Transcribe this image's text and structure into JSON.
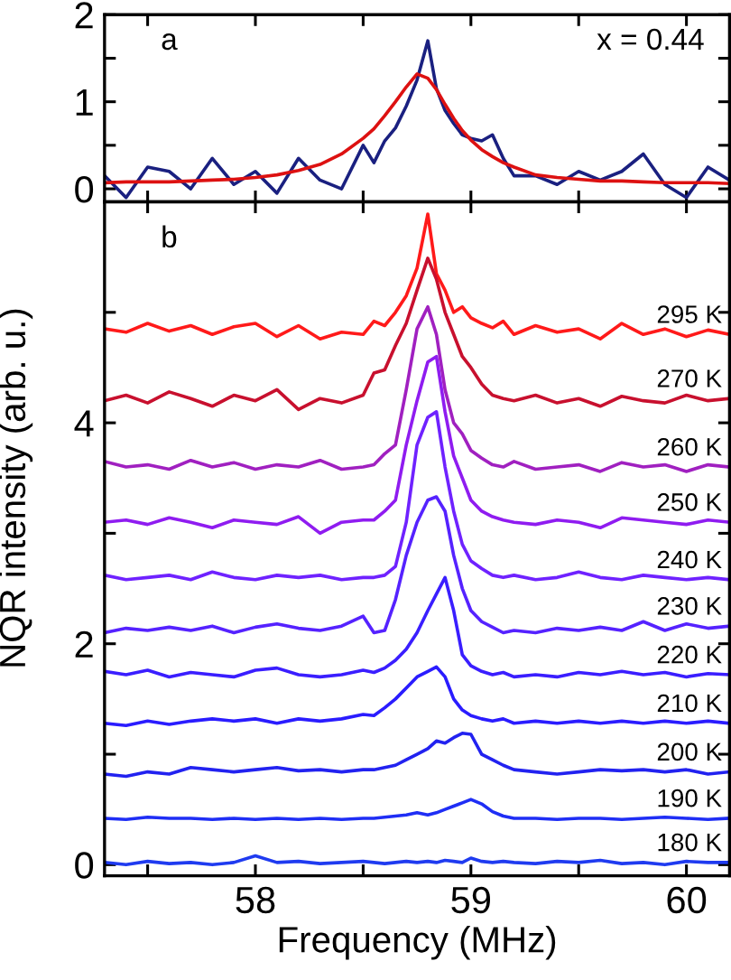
{
  "chart_data": [
    {
      "type": "line",
      "annotations": [
        "a",
        "x = 0.44"
      ],
      "tick_labels": "y",
      "x": [
        57.3,
        57.4,
        57.5,
        57.6,
        57.7,
        57.8,
        57.9,
        58.0,
        58.1,
        58.2,
        58.3,
        58.4,
        58.5,
        58.55,
        58.6,
        58.65,
        58.7,
        58.75,
        58.8,
        58.84,
        58.88,
        58.92,
        58.96,
        59.0,
        59.05,
        59.1,
        59.15,
        59.2,
        59.3,
        59.4,
        59.5,
        59.6,
        59.7,
        59.8,
        59.9,
        60.0,
        60.1,
        60.2
      ],
      "xlim": [
        57.3,
        60.2
      ],
      "xticks": [
        {
          "value": 57.5,
          "label": null
        },
        58,
        {
          "value": 58.5,
          "label": null
        },
        59,
        {
          "value": 59.5,
          "label": null
        },
        60
      ],
      "ylim": [
        -0.15,
        2
      ],
      "yticks": [
        0,
        {
          "value": 0.5,
          "label": null
        },
        1,
        {
          "value": 1.5,
          "label": null
        },
        2
      ],
      "series": [
        {
          "color": "#1a2080",
          "values": [
            0.15,
            -0.1,
            0.25,
            0.2,
            0.0,
            0.35,
            0.05,
            0.2,
            -0.05,
            0.35,
            0.1,
            0.0,
            0.5,
            0.3,
            0.55,
            0.7,
            0.95,
            1.25,
            1.7,
            1.15,
            0.9,
            0.75,
            0.62,
            0.58,
            0.55,
            0.62,
            0.35,
            0.15,
            0.15,
            0.05,
            0.2,
            0.1,
            0.2,
            0.4,
            0.05,
            -0.1,
            0.25,
            0.1
          ]
        },
        {
          "color": "#dd1111",
          "values": [
            0.07,
            0.08,
            0.08,
            0.08,
            0.09,
            0.1,
            0.11,
            0.13,
            0.16,
            0.21,
            0.28,
            0.4,
            0.58,
            0.69,
            0.84,
            1.0,
            1.17,
            1.32,
            1.27,
            1.14,
            0.97,
            0.81,
            0.67,
            0.56,
            0.45,
            0.37,
            0.3,
            0.25,
            0.16,
            0.13,
            0.11,
            0.09,
            0.09,
            0.08,
            0.07,
            0.07,
            0.07,
            0.06
          ]
        }
      ]
    },
    {
      "type": "line",
      "annotations": [
        "b"
      ],
      "xlabel": "Frequency (MHz)",
      "ylabel": "NQR intensity (arb. u.)",
      "x": [
        57.3,
        57.4,
        57.5,
        57.6,
        57.7,
        57.8,
        57.9,
        58.0,
        58.1,
        58.2,
        58.3,
        58.4,
        58.5,
        58.55,
        58.6,
        58.65,
        58.7,
        58.75,
        58.8,
        58.84,
        58.88,
        58.92,
        58.96,
        59.0,
        59.05,
        59.1,
        59.15,
        59.2,
        59.3,
        59.4,
        59.5,
        59.6,
        59.7,
        59.8,
        59.9,
        60.0,
        60.1,
        60.2
      ],
      "xlim": [
        57.3,
        60.2
      ],
      "xticks": [
        {
          "value": 57.5,
          "label": null
        },
        58,
        {
          "value": 58.5,
          "label": null
        },
        59,
        {
          "value": 59.5,
          "label": null
        },
        60
      ],
      "ylim": [
        -0.1,
        6.0
      ],
      "yticks": [
        0,
        {
          "value": 1,
          "label": null
        },
        2,
        {
          "value": 3,
          "label": null
        },
        4,
        {
          "value": 5,
          "label": null
        }
      ],
      "series": [
        {
          "name": "295 K",
          "color": "#ff1a1a",
          "values": [
            4.85,
            4.82,
            4.9,
            4.83,
            4.88,
            4.8,
            4.87,
            4.9,
            4.78,
            4.88,
            4.76,
            4.82,
            4.8,
            4.92,
            4.88,
            5.0,
            5.15,
            5.4,
            5.89,
            5.35,
            5.2,
            5.0,
            5.05,
            4.95,
            4.9,
            4.86,
            4.92,
            4.8,
            4.88,
            4.82,
            4.85,
            4.76,
            4.9,
            4.8,
            4.85,
            4.78,
            4.84,
            4.8
          ]
        },
        {
          "name": "270 K",
          "color": "#c8102e",
          "values": [
            4.2,
            4.25,
            4.18,
            4.28,
            4.22,
            4.15,
            4.25,
            4.2,
            4.3,
            4.12,
            4.22,
            4.18,
            4.25,
            4.45,
            4.48,
            4.7,
            4.9,
            5.2,
            5.49,
            5.3,
            5.0,
            4.8,
            4.6,
            4.5,
            4.35,
            4.25,
            4.22,
            4.2,
            4.25,
            4.18,
            4.22,
            4.15,
            4.24,
            4.2,
            4.18,
            4.25,
            4.2,
            4.22
          ]
        },
        {
          "name": "260 K",
          "color": "#a020c0",
          "values": [
            3.65,
            3.6,
            3.62,
            3.58,
            3.66,
            3.6,
            3.64,
            3.58,
            3.62,
            3.6,
            3.66,
            3.58,
            3.6,
            3.62,
            3.72,
            3.8,
            4.3,
            4.85,
            5.05,
            4.8,
            4.3,
            4.0,
            3.9,
            3.75,
            3.68,
            3.62,
            3.6,
            3.65,
            3.58,
            3.6,
            3.62,
            3.56,
            3.64,
            3.6,
            3.62,
            3.56,
            3.62,
            3.6
          ]
        },
        {
          "name": "250 K",
          "color": "#8f1cf0",
          "values": [
            3.1,
            3.12,
            3.08,
            3.14,
            3.1,
            3.05,
            3.12,
            3.1,
            3.08,
            3.15,
            3.0,
            3.1,
            3.12,
            3.12,
            3.2,
            3.3,
            3.8,
            4.2,
            4.55,
            4.6,
            4.1,
            3.7,
            3.5,
            3.3,
            3.2,
            3.15,
            3.12,
            3.1,
            3.08,
            3.12,
            3.1,
            3.05,
            3.14,
            3.12,
            3.1,
            3.08,
            3.12,
            3.1
          ]
        },
        {
          "name": "240 K",
          "color": "#6f22ff",
          "values": [
            2.62,
            2.58,
            2.6,
            2.62,
            2.58,
            2.65,
            2.6,
            2.58,
            2.62,
            2.6,
            2.62,
            2.58,
            2.6,
            2.6,
            2.62,
            2.7,
            3.1,
            3.8,
            4.05,
            4.1,
            3.6,
            3.2,
            2.9,
            2.75,
            2.68,
            2.62,
            2.6,
            2.62,
            2.58,
            2.6,
            2.65,
            2.6,
            2.58,
            2.62,
            2.6,
            2.58,
            2.6,
            2.58
          ]
        },
        {
          "name": "230 K",
          "color": "#5522ff",
          "values": [
            2.1,
            2.14,
            2.12,
            2.15,
            2.12,
            2.16,
            2.1,
            2.15,
            2.18,
            2.14,
            2.12,
            2.16,
            2.25,
            2.1,
            2.12,
            2.4,
            2.8,
            3.1,
            3.3,
            3.33,
            3.2,
            2.8,
            2.5,
            2.3,
            2.2,
            2.15,
            2.1,
            2.12,
            2.1,
            2.14,
            2.12,
            2.15,
            2.12,
            2.2,
            2.12,
            2.18,
            2.14,
            2.16
          ]
        },
        {
          "name": "220 K",
          "color": "#3a1eff",
          "values": [
            1.75,
            1.72,
            1.76,
            1.7,
            1.74,
            1.72,
            1.7,
            1.76,
            1.78,
            1.72,
            1.7,
            1.72,
            1.76,
            1.74,
            1.78,
            1.85,
            1.95,
            2.1,
            2.3,
            2.45,
            2.6,
            2.3,
            1.9,
            1.8,
            1.75,
            1.72,
            1.74,
            1.7,
            1.72,
            1.7,
            1.74,
            1.72,
            1.75,
            1.72,
            1.74,
            1.7,
            1.73,
            1.72
          ]
        },
        {
          "name": "210 K",
          "color": "#2a1cff",
          "values": [
            1.28,
            1.26,
            1.3,
            1.27,
            1.3,
            1.32,
            1.3,
            1.32,
            1.28,
            1.32,
            1.3,
            1.32,
            1.36,
            1.35,
            1.42,
            1.5,
            1.6,
            1.7,
            1.75,
            1.79,
            1.7,
            1.5,
            1.4,
            1.35,
            1.32,
            1.3,
            1.32,
            1.28,
            1.3,
            1.28,
            1.3,
            1.28,
            1.3,
            1.28,
            1.3,
            1.28,
            1.3,
            1.28
          ]
        },
        {
          "name": "200 K",
          "color": "#2222f0",
          "values": [
            0.82,
            0.8,
            0.84,
            0.82,
            0.88,
            0.86,
            0.84,
            0.86,
            0.88,
            0.85,
            0.86,
            0.84,
            0.86,
            0.86,
            0.88,
            0.9,
            0.95,
            1.0,
            1.05,
            1.12,
            1.1,
            1.15,
            1.19,
            1.18,
            1.0,
            0.95,
            0.9,
            0.86,
            0.84,
            0.82,
            0.84,
            0.86,
            0.85,
            0.86,
            0.84,
            0.86,
            0.82,
            0.84
          ]
        },
        {
          "name": "190 K",
          "color": "#1f2ef5",
          "values": [
            0.42,
            0.41,
            0.43,
            0.42,
            0.42,
            0.41,
            0.42,
            0.41,
            0.42,
            0.41,
            0.42,
            0.41,
            0.42,
            0.42,
            0.43,
            0.44,
            0.45,
            0.47,
            0.45,
            0.47,
            0.5,
            0.53,
            0.56,
            0.59,
            0.55,
            0.48,
            0.44,
            0.42,
            0.42,
            0.41,
            0.42,
            0.42,
            0.41,
            0.42,
            0.43,
            0.42,
            0.41,
            0.42
          ]
        },
        {
          "name": "180 K",
          "color": "#1f3bf0",
          "values": [
            0.02,
            0.0,
            0.03,
            0.01,
            0.02,
            0.0,
            0.02,
            0.08,
            0.02,
            0.03,
            0.01,
            0.02,
            0.03,
            0.02,
            0.01,
            0.02,
            0.03,
            0.02,
            0.03,
            0.02,
            0.04,
            0.03,
            0.02,
            0.06,
            0.03,
            0.02,
            0.03,
            0.02,
            0.01,
            0.03,
            0.02,
            0.04,
            0.01,
            0.02,
            0.0,
            0.03,
            0.02,
            0.02
          ]
        }
      ]
    }
  ]
}
